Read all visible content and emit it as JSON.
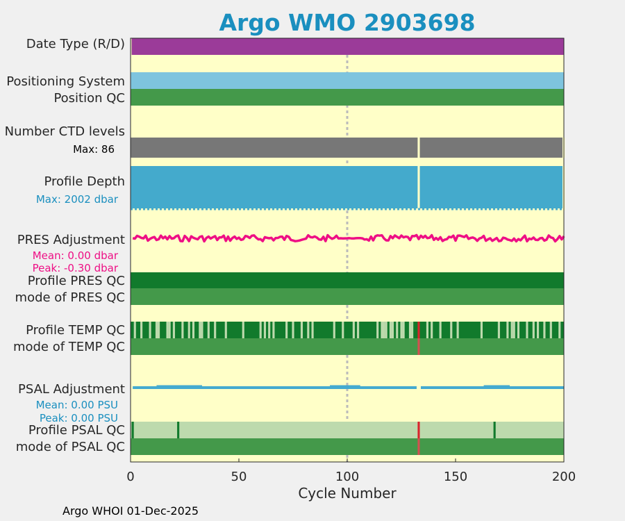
{
  "chart_data": {
    "type": "bar",
    "title": "Argo WMO 2903698",
    "xlabel": "Cycle Number",
    "xlim": [
      0,
      200
    ],
    "xticks": [
      "0",
      "50",
      "100",
      "150",
      "200"
    ],
    "reference_cycle": 100,
    "footer": "Argo WHOI 01-Dec-2025",
    "colors": {
      "title": "#1a8fbf",
      "background": "#ffffc8",
      "delayed": "#9b3b99",
      "positioning": "#7ec4de",
      "qc_good": "#44994a",
      "qc_good_dark": "#117a2c",
      "qc_probably_good": "#bddaad",
      "qc_bad": "#d9252d",
      "ctd": "#777777",
      "depth": "#44aacc",
      "pres": "#ee0f85",
      "psal": "#44aad0"
    },
    "rows": {
      "date_type": {
        "label": "Date Type (R/D)",
        "value": "D",
        "cycles": [
          1,
          200
        ]
      },
      "positioning_system": {
        "label": "Positioning System"
      },
      "position_qc": {
        "label": "Position QC"
      },
      "ctd_levels": {
        "label": "Number CTD levels",
        "max_label": "Max: 86",
        "max": 86,
        "gap_cycles": [
          133,
          200
        ]
      },
      "profile_depth": {
        "label": "Profile Depth",
        "max_label": "Max: 2002 dbar",
        "max": 2002,
        "gap_cycles": [
          133,
          200
        ]
      },
      "pres_adjustment": {
        "label": "PRES Adjustment",
        "mean_label": "Mean: 0.00 dbar",
        "peak_label": "Peak: -0.30 dbar",
        "mean": 0.0,
        "peak": -0.3
      },
      "profile_pres_qc": {
        "label": "Profile PRES QC"
      },
      "mode_pres_qc": {
        "label": "mode of PRES QC"
      },
      "profile_temp_qc": {
        "label": "Profile TEMP QC",
        "bad_cycles": [
          133
        ],
        "light_cycles": [
          2,
          5,
          9,
          12,
          13,
          17,
          18,
          20,
          24,
          27,
          29,
          32,
          33,
          36,
          39,
          44,
          52,
          60,
          62,
          64,
          66,
          72,
          75,
          79,
          82,
          84,
          94,
          98,
          103,
          105,
          114,
          116,
          117,
          118,
          120,
          121,
          123,
          125,
          126,
          129,
          130,
          137,
          139,
          143,
          148,
          151,
          162,
          170,
          174,
          176,
          177,
          179,
          183,
          186,
          188,
          191,
          194,
          198
        ]
      },
      "mode_temp_qc": {
        "label": "mode of TEMP QC",
        "bad_cycles": [
          133
        ]
      },
      "psal_adjustment": {
        "label": "PSAL Adjustment",
        "mean_label": "Mean: 0.00 PSU",
        "peak_label": "Peak: 0.00 PSU",
        "mean": 0.0,
        "peak": 0.0,
        "gap_cycles": [
          133
        ]
      },
      "profile_psal_qc": {
        "label": "Profile PSAL QC",
        "good_cycles": [
          1,
          22,
          168
        ],
        "bad_cycles": [
          133
        ]
      },
      "mode_psal_qc": {
        "label": "mode of PSAL QC",
        "bad_cycles": [
          133
        ]
      }
    }
  }
}
